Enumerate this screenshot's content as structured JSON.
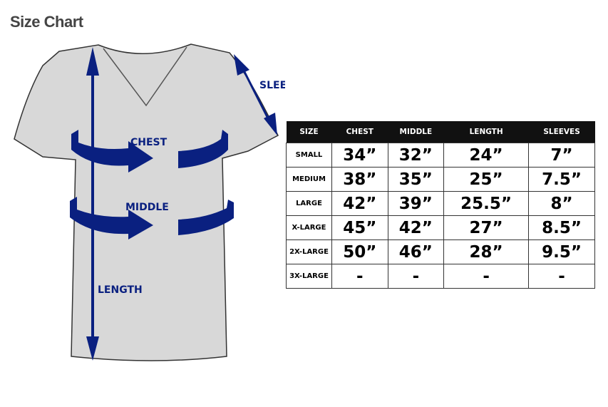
{
  "title": "Size Chart",
  "diagram": {
    "labels": {
      "chest": "CHEST",
      "middle": "MIDDLE",
      "length": "LENGTH",
      "sleeve": "SLEEVE"
    },
    "arrow_color": "#0a2080"
  },
  "table": {
    "headers": [
      "SIZE",
      "CHEST",
      "MIDDLE",
      "LENGTH",
      "SLEEVES"
    ],
    "rows": [
      [
        "SMALL",
        "34”",
        "32”",
        "24”",
        "7”"
      ],
      [
        "MEDIUM",
        "38”",
        "35”",
        "25”",
        "7.5”"
      ],
      [
        "LARGE",
        "42”",
        "39”",
        "25.5”",
        "8”"
      ],
      [
        "X-LARGE",
        "45”",
        "42”",
        "27”",
        "8.5”"
      ],
      [
        "2X-LARGE",
        "50”",
        "46”",
        "28”",
        "9.5”"
      ],
      [
        "3X-LARGE",
        "-",
        "-",
        "-",
        "-"
      ]
    ]
  }
}
